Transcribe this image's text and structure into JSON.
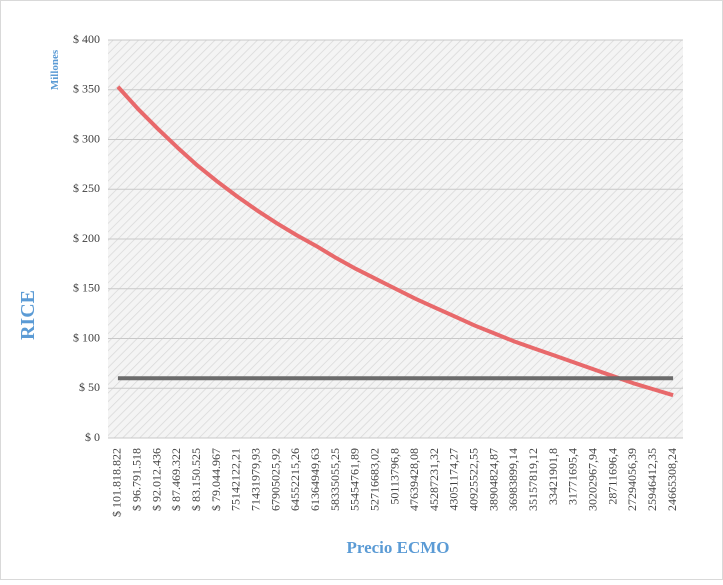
{
  "chart_data": {
    "type": "line",
    "y_label": "RICE",
    "y_unit": "Millones",
    "x_label": "Precio ECMO",
    "categories": [
      "$ 101.818.822",
      "$ 96.791.518",
      "$ 92.012.436",
      "$ 87.469.322",
      "$ 83.150.525",
      "$ 79.044.967",
      "75142122,21",
      "71431979,93",
      "67905025,92",
      "64552215,26",
      "61364949,63",
      "58335055,25",
      "55454761,89",
      "52716683,02",
      "50113796,8",
      "47639428,08",
      "45287231,32",
      "43051174,27",
      "40925522,55",
      "38904824,87",
      "36983899,14",
      "35157819,12",
      "33421901,8",
      "31771695,4",
      "30202967,94",
      "28711696,4",
      "27294056,39",
      "25946412,35",
      "24665308,24"
    ],
    "series": [
      {
        "color": "#e8696b",
        "values": [
          353,
          331,
          311,
          292,
          274,
          258,
          243,
          229,
          216,
          204,
          193,
          181,
          170,
          160,
          150,
          140,
          131,
          122,
          113,
          105,
          97,
          90,
          83,
          76,
          69,
          62,
          55,
          49,
          43
        ]
      },
      {
        "color": "#6b6b6b",
        "values": [
          60,
          60,
          60,
          60,
          60,
          60,
          60,
          60,
          60,
          60,
          60,
          60,
          60,
          60,
          60,
          60,
          60,
          60,
          60,
          60,
          60,
          60,
          60,
          60,
          60,
          60,
          60,
          60,
          60
        ]
      }
    ],
    "ylim": [
      0,
      400
    ],
    "yticks": [
      {
        "value": 0,
        "label": "$ 0"
      },
      {
        "value": 50,
        "label": "$ 50"
      },
      {
        "value": 100,
        "label": "$ 100"
      },
      {
        "value": 150,
        "label": "$ 150"
      },
      {
        "value": 200,
        "label": "$ 200"
      },
      {
        "value": 250,
        "label": "$ 250"
      },
      {
        "value": 300,
        "label": "$ 300"
      },
      {
        "value": 350,
        "label": "$ 350"
      },
      {
        "value": 400,
        "label": "$ 400"
      }
    ],
    "grid": true
  }
}
